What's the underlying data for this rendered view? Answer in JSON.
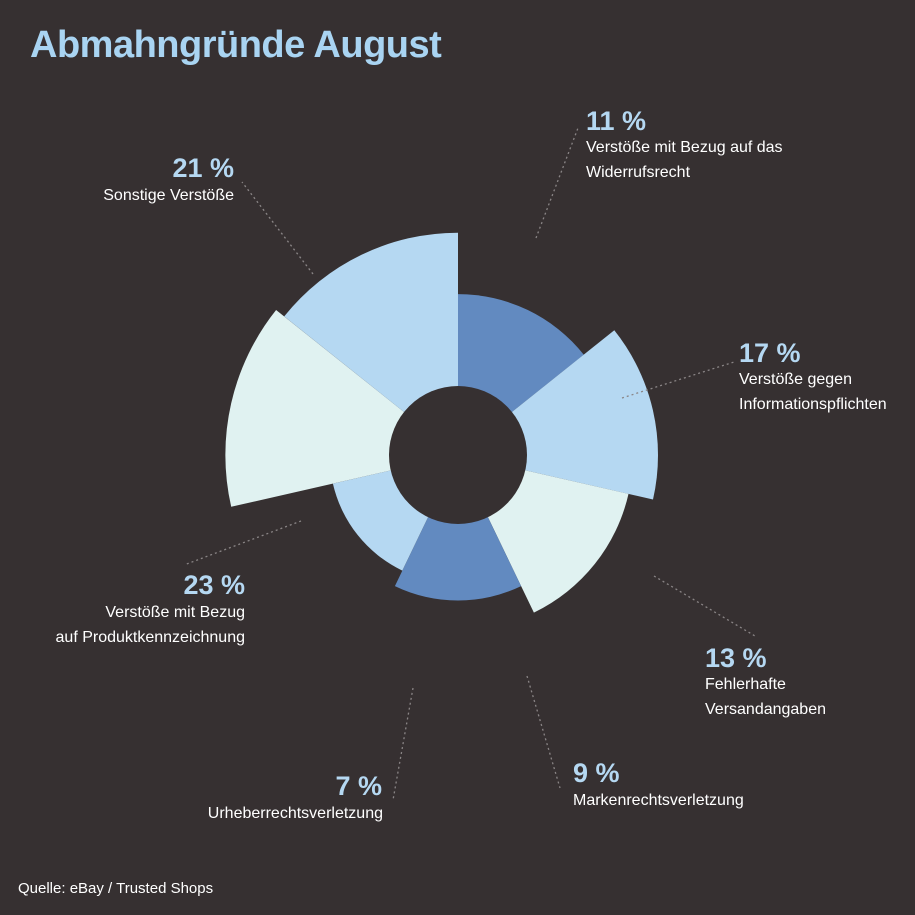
{
  "title": "Abmahngründe August",
  "source": "Quelle: eBay / Trusted Shops",
  "colors": {
    "background": "#363031",
    "dark": "#628ac0",
    "medium": "#b5d8f2",
    "light": "#e0f2f1",
    "value_text": "#b5d8f2",
    "label_text": "#ffffff"
  },
  "chart_data": {
    "type": "pie",
    "variant": "polar-area donut",
    "unit": "%",
    "slices": [
      {
        "value": 11,
        "value_label": "11 %",
        "label_lines": [
          "Verstöße mit Bezug auf das",
          "Widerrufsrecht"
        ],
        "color": "dark"
      },
      {
        "value": 17,
        "value_label": "17 %",
        "label_lines": [
          "Verstöße gegen",
          "Informationspflichten"
        ],
        "color": "medium"
      },
      {
        "value": 13,
        "value_label": "13 %",
        "label_lines": [
          "Fehlerhafte",
          "Versandangaben"
        ],
        "color": "light"
      },
      {
        "value": 9,
        "value_label": "9 %",
        "label_lines": [
          "Markenrechtsverletzung"
        ],
        "color": "dark"
      },
      {
        "value": 7,
        "value_label": "7 %",
        "label_lines": [
          "Urheberrechtsverletzung"
        ],
        "color": "medium"
      },
      {
        "value": 23,
        "value_label": "23 %",
        "label_lines": [
          "Verstöße mit Bezug",
          "auf Produktkennzeichnung"
        ],
        "color": "light"
      },
      {
        "value": 21,
        "value_label": "21 %",
        "label_lines": [
          "Sonstige Verstöße"
        ],
        "color": "medium"
      }
    ]
  }
}
